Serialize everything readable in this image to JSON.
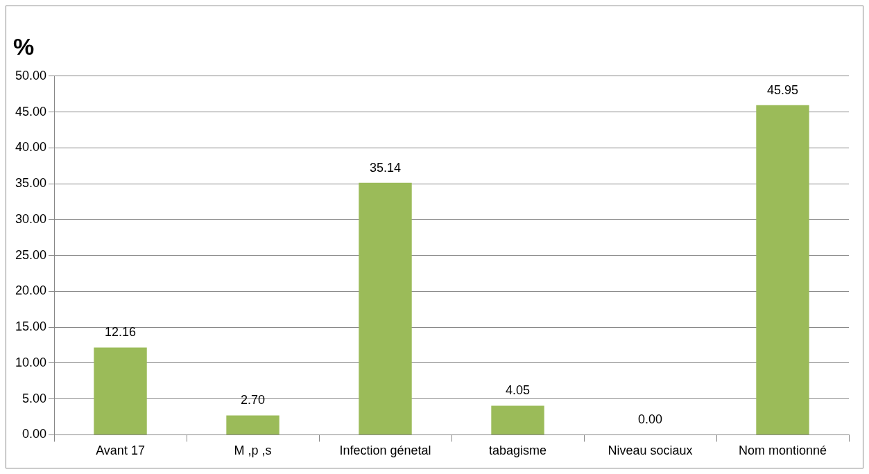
{
  "chart_data": {
    "type": "bar",
    "title": "%",
    "categories": [
      "Avant 17",
      "M ,p ,s",
      "Infection génetal",
      "tabagisme",
      "Niveau sociaux",
      "Nom montionné"
    ],
    "values": [
      12.16,
      2.7,
      35.14,
      4.05,
      0.0,
      45.95
    ],
    "value_labels": [
      "12.16",
      "2.70",
      "35.14",
      "4.05",
      "0.00",
      "45.95"
    ],
    "color": "#9bbb59",
    "ylim": [
      0,
      50
    ],
    "yticks": [
      {
        "value": 0,
        "label": "0.00"
      },
      {
        "value": 5,
        "label": "5.00"
      },
      {
        "value": 10,
        "label": "10.00"
      },
      {
        "value": 15,
        "label": "15.00"
      },
      {
        "value": 20,
        "label": "20.00"
      },
      {
        "value": 25,
        "label": "25.00"
      },
      {
        "value": 30,
        "label": "30.00"
      },
      {
        "value": 35,
        "label": "35.00"
      },
      {
        "value": 40,
        "label": "40.00"
      },
      {
        "value": 45,
        "label": "45.00"
      },
      {
        "value": 50,
        "label": "50.00"
      }
    ],
    "grid": "y",
    "legend": false
  }
}
